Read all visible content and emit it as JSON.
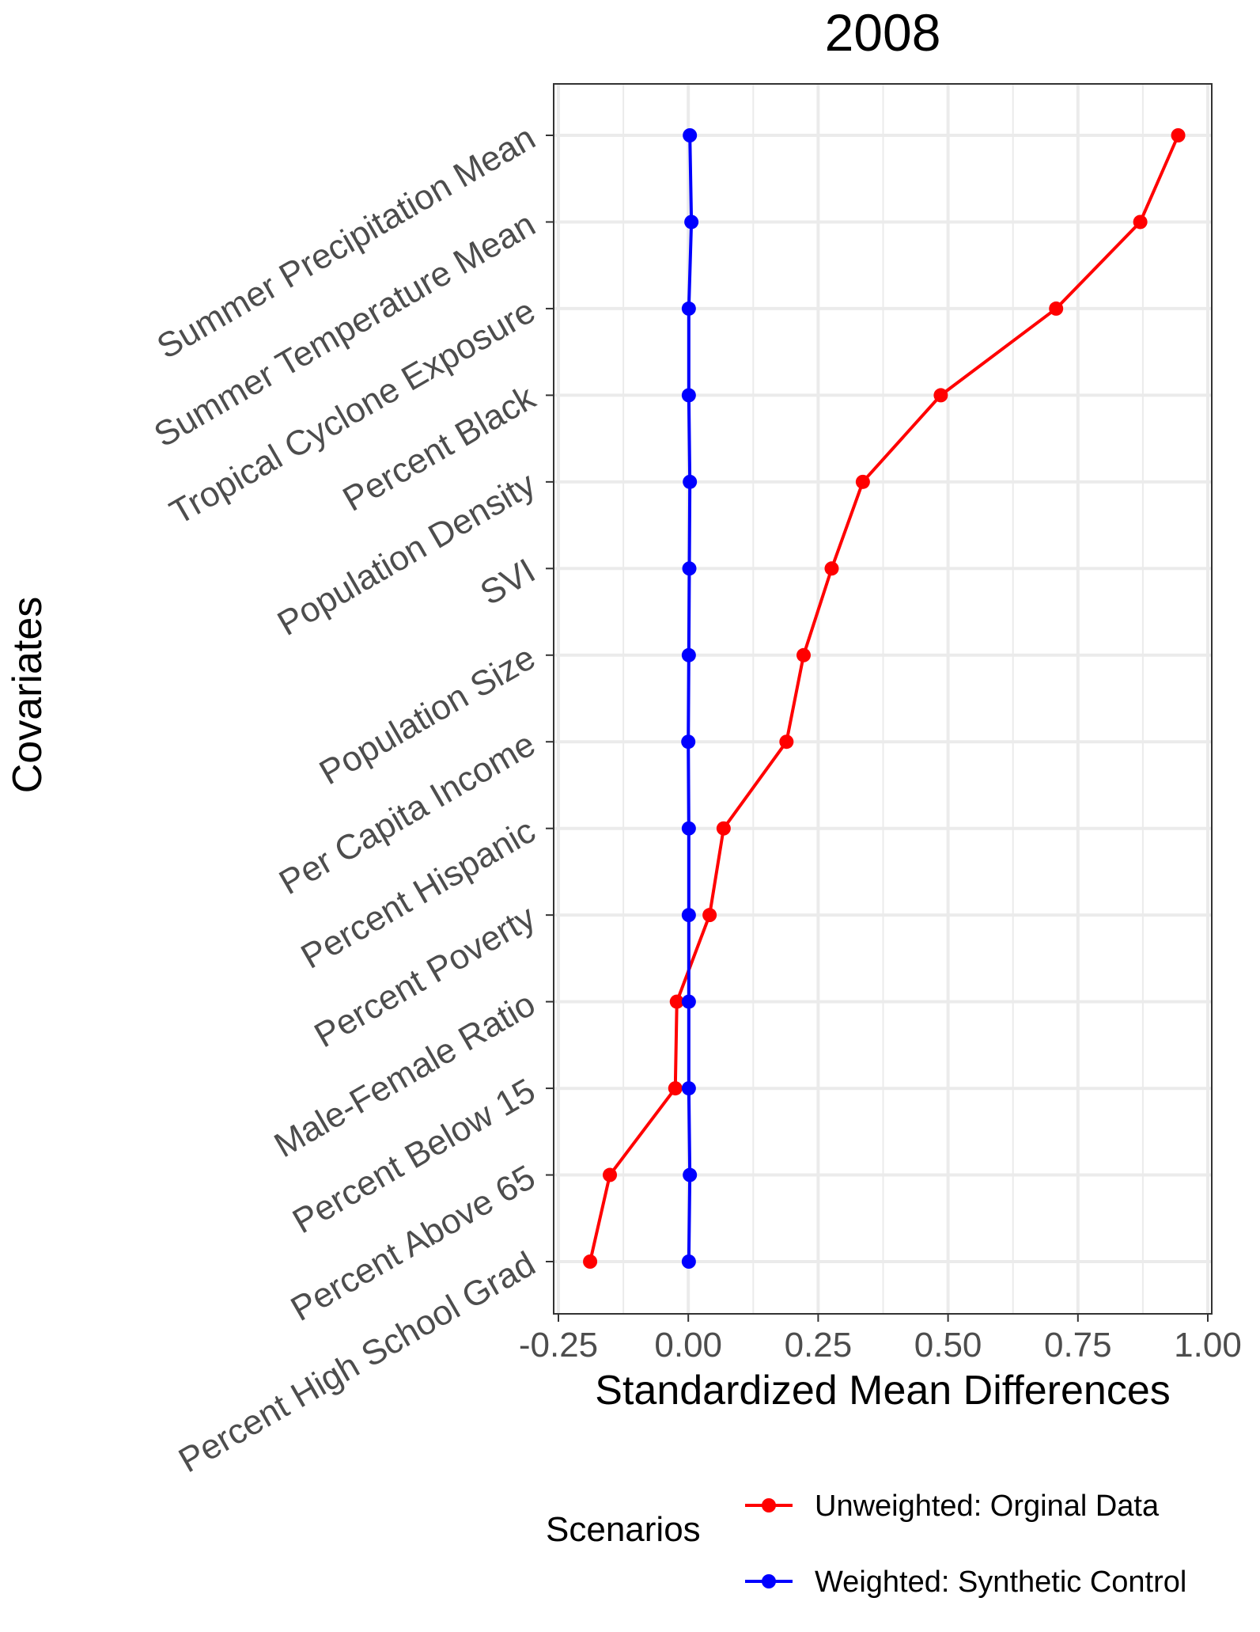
{
  "chart_data": {
    "type": "line",
    "title": "2008",
    "xlabel": "Standardized Mean Differences",
    "ylabel": "Covariates",
    "xlim": [
      -0.25,
      1.0
    ],
    "x_ticks": [
      "-0.25",
      "0.00",
      "0.25",
      "0.50",
      "0.75",
      "1.00"
    ],
    "x_tick_values": [
      -0.25,
      0.0,
      0.25,
      0.5,
      0.75,
      1.0
    ],
    "grid": true,
    "legend_position": "bottom",
    "legend_title": "Scenarios",
    "categories": [
      "Summer Precipitation Mean",
      "Summer Temperature Mean",
      "Tropical Cyclone Exposure",
      "Percent Black",
      "Population Density",
      "SVI",
      "Population Size",
      "Per Capita Income",
      "Percent Hispanic",
      "Percent Poverty",
      "Male-Female Ratio",
      "Percent Below 15",
      "Percent Above 65",
      "Percent High School Grad"
    ],
    "series": [
      {
        "name": "Unweighted: Orginal Data",
        "color": "#ff0000",
        "values": [
          0.943,
          0.87,
          0.708,
          0.486,
          0.336,
          0.276,
          0.222,
          0.189,
          0.068,
          0.041,
          -0.022,
          -0.025,
          -0.151,
          -0.189
        ]
      },
      {
        "name": "Weighted: Synthetic Control",
        "color": "#0000ff",
        "values": [
          0.003,
          0.006,
          0.001,
          0.001,
          0.003,
          0.002,
          0.001,
          0.0,
          0.001,
          0.001,
          0.001,
          0.001,
          0.003,
          0.001
        ]
      }
    ]
  }
}
